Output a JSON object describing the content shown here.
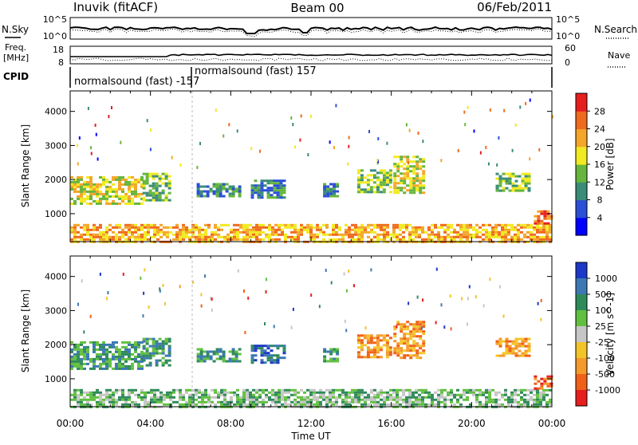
{
  "header": {
    "station": "Inuvik (fitACF)",
    "beam": "Beam 00",
    "date": "06/Feb/2011"
  },
  "top_panels": {
    "nsky_label": "N.Sky",
    "nsearch_label": "N.Search",
    "noise_ticks_left": [
      "10^5",
      "10^0"
    ],
    "noise_ticks_right": [
      "10^5",
      "10^0"
    ],
    "freq_label_1": "Freq.",
    "freq_label_2": "[MHz]",
    "freq_ticks": [
      "18",
      "8"
    ],
    "nave_label": "Nave",
    "nave_ticks": [
      "60",
      "0"
    ],
    "cpid_label": "CPID",
    "cpid_entries": [
      {
        "text": "normalsound (fast) -157"
      },
      {
        "text": "normalsound (fast) 157"
      }
    ]
  },
  "x_axis": {
    "label": "Time UT",
    "ticks": [
      "00:00",
      "04:00",
      "08:00",
      "12:00",
      "16:00",
      "20:00",
      "00:00"
    ],
    "range_hours": [
      0,
      24
    ]
  },
  "y_axis": {
    "label": "Slant Range [km]",
    "ticks": [
      "1000",
      "2000",
      "3000",
      "4000"
    ],
    "range_km": [
      180,
      4600
    ]
  },
  "chart_data": [
    {
      "type": "heatmap",
      "name": "power",
      "ylabel": "Slant Range [km]",
      "xlabel": "",
      "xlim": [
        0,
        24
      ],
      "ylim": [
        180,
        4600
      ],
      "colorbar": {
        "label": "Power [dB]",
        "ticks": [
          "4",
          "8",
          "12",
          "16",
          "20",
          "24",
          "28"
        ],
        "colors": [
          "#0000ff",
          "#2b4fd6",
          "#3a8c78",
          "#66b53c",
          "#f2ea20",
          "#f3a629",
          "#f06a1e",
          "#e61e1e"
        ]
      },
      "regions": [
        {
          "t0": 0.0,
          "t1": 24.0,
          "r0": 200,
          "r1": 700,
          "level": 5
        },
        {
          "t0": 0.0,
          "t1": 3.6,
          "r0": 1300,
          "r1": 2100,
          "level": 4
        },
        {
          "t0": 3.6,
          "t1": 5.0,
          "r0": 1400,
          "r1": 2200,
          "level": 3
        },
        {
          "t0": 6.3,
          "t1": 8.5,
          "r0": 1500,
          "r1": 1900,
          "level": 2
        },
        {
          "t0": 9.0,
          "t1": 10.6,
          "r0": 1500,
          "r1": 2000,
          "level": 2
        },
        {
          "t0": 12.6,
          "t1": 13.3,
          "r0": 1500,
          "r1": 1900,
          "level": 2
        },
        {
          "t0": 14.3,
          "t1": 16.0,
          "r0": 1600,
          "r1": 2300,
          "level": 3
        },
        {
          "t0": 16.1,
          "t1": 17.6,
          "r0": 1600,
          "r1": 2700,
          "level": 4
        },
        {
          "t0": 21.2,
          "t1": 22.8,
          "r0": 1700,
          "r1": 2200,
          "level": 3
        },
        {
          "t0": 23.1,
          "t1": 24.0,
          "r0": 700,
          "r1": 1100,
          "level": 6
        }
      ]
    },
    {
      "type": "heatmap",
      "name": "velocity",
      "ylabel": "Slant Range [km]",
      "xlabel": "Time UT",
      "xlim": [
        0,
        24
      ],
      "ylim": [
        180,
        4600
      ],
      "colorbar": {
        "label": "Velocity [m s^-1]",
        "ticks": [
          "1000",
          "500",
          "100",
          "25",
          "-25",
          "-100",
          "-500",
          "-1000"
        ],
        "colors": [
          "#1c38c8",
          "#3c78b4",
          "#2f8a5a",
          "#62c040",
          "#c6c6c6",
          "#f3c428",
          "#f39a2a",
          "#f06018",
          "#e61e1e"
        ]
      },
      "regions": [
        {
          "t0": 0.0,
          "t1": 24.0,
          "r0": 200,
          "r1": 700,
          "level": 3
        },
        {
          "t0": 0.0,
          "t1": 3.6,
          "r0": 1300,
          "r1": 2100,
          "level": 2
        },
        {
          "t0": 3.6,
          "t1": 5.0,
          "r0": 1400,
          "r1": 2200,
          "level": 2
        },
        {
          "t0": 6.3,
          "t1": 8.5,
          "r0": 1500,
          "r1": 1900,
          "level": 2
        },
        {
          "t0": 9.0,
          "t1": 10.6,
          "r0": 1500,
          "r1": 2000,
          "level": 1
        },
        {
          "t0": 12.6,
          "t1": 13.3,
          "r0": 1500,
          "r1": 1900,
          "level": 2
        },
        {
          "t0": 14.3,
          "t1": 16.0,
          "r0": 1600,
          "r1": 2300,
          "level": 6
        },
        {
          "t0": 16.1,
          "t1": 17.6,
          "r0": 1600,
          "r1": 2700,
          "level": 6
        },
        {
          "t0": 21.2,
          "t1": 22.8,
          "r0": 1700,
          "r1": 2200,
          "level": 6
        },
        {
          "t0": 23.1,
          "t1": 24.0,
          "r0": 700,
          "r1": 1100,
          "level": 7
        }
      ]
    }
  ]
}
